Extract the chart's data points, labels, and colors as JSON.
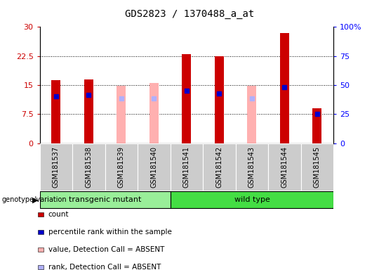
{
  "title": "GDS2823 / 1370488_a_at",
  "samples": [
    "GSM181537",
    "GSM181538",
    "GSM181539",
    "GSM181540",
    "GSM181541",
    "GSM181542",
    "GSM181543",
    "GSM181544",
    "GSM181545"
  ],
  "count_values": [
    16.2,
    16.5,
    null,
    null,
    23.0,
    22.5,
    null,
    28.5,
    9.0
  ],
  "rank_values": [
    12.0,
    12.5,
    null,
    null,
    13.5,
    12.8,
    null,
    14.5,
    7.5
  ],
  "absent_value_values": [
    null,
    null,
    14.8,
    15.5,
    null,
    null,
    14.8,
    null,
    null
  ],
  "absent_rank_values": [
    null,
    null,
    11.5,
    11.5,
    null,
    null,
    11.5,
    null,
    null
  ],
  "groups": [
    {
      "label": "transgenic mutant",
      "start": 0,
      "end": 4,
      "color": "#99ee99"
    },
    {
      "label": "wild type",
      "start": 4,
      "end": 9,
      "color": "#44dd44"
    }
  ],
  "ylim_left": [
    0,
    30
  ],
  "ylim_right": [
    0,
    100
  ],
  "yticks_left": [
    0,
    7.5,
    15,
    22.5,
    30
  ],
  "yticks_right": [
    0,
    25,
    50,
    75,
    100
  ],
  "ytick_labels_left": [
    "0",
    "7.5",
    "15",
    "22.5",
    "30"
  ],
  "ytick_labels_right": [
    "0",
    "25",
    "50",
    "75",
    "100%"
  ],
  "count_color": "#cc0000",
  "rank_color": "#0000cc",
  "absent_value_color": "#ffb0b0",
  "absent_rank_color": "#b0b0ff",
  "sample_box_color": "#cccccc",
  "legend_items": [
    {
      "label": "count",
      "color": "#cc0000"
    },
    {
      "label": "percentile rank within the sample",
      "color": "#0000cc"
    },
    {
      "label": "value, Detection Call = ABSENT",
      "color": "#ffb0b0"
    },
    {
      "label": "rank, Detection Call = ABSENT",
      "color": "#b0b0ff"
    }
  ]
}
